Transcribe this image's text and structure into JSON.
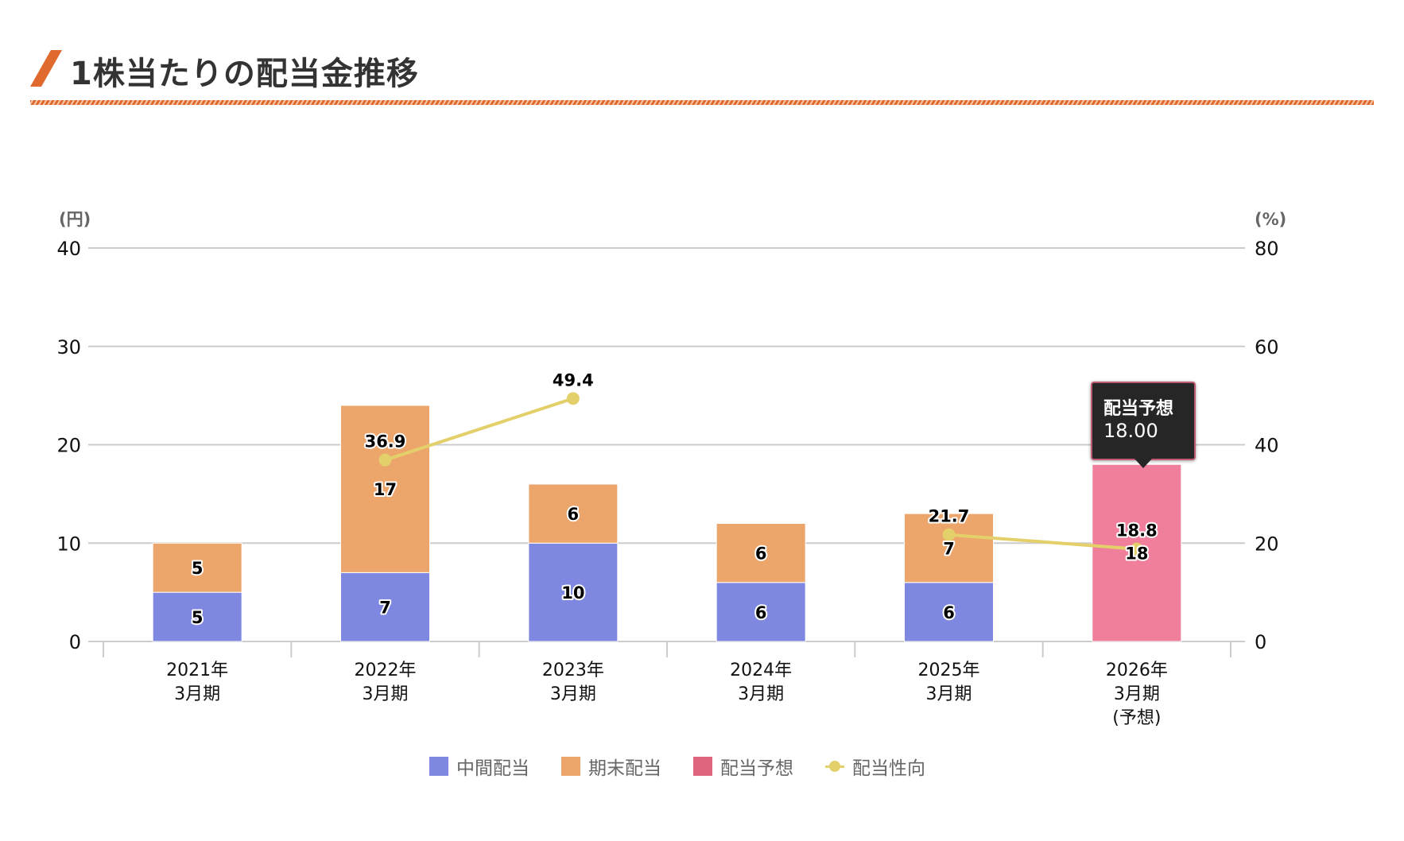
{
  "header": {
    "title": "1株当たりの配当金推移",
    "accent_color": "#e06a2e"
  },
  "chart_data": {
    "type": "bar",
    "stacked": true,
    "title": "1株当たりの配当金推移",
    "categories": [
      [
        "2021年",
        "3月期"
      ],
      [
        "2022年",
        "3月期"
      ],
      [
        "2023年",
        "3月期"
      ],
      [
        "2024年",
        "3月期"
      ],
      [
        "2025年",
        "3月期"
      ],
      [
        "2026年",
        "3月期",
        "(予想)"
      ]
    ],
    "y_left": {
      "label": "(円)",
      "ylim": [
        0,
        40
      ],
      "ticks": [
        0,
        10,
        20,
        30,
        40
      ]
    },
    "y_right": {
      "label": "(%)",
      "ylim": [
        0,
        80
      ],
      "ticks": [
        0,
        20,
        40,
        60,
        80
      ]
    },
    "grid": true,
    "legend_position": "bottom",
    "series": [
      {
        "name": "中間配当",
        "type": "bar",
        "axis": "left",
        "color": "#7f88e1",
        "values": [
          5,
          7,
          10,
          6,
          6,
          null
        ]
      },
      {
        "name": "期末配当",
        "type": "bar",
        "axis": "left",
        "color": "#eca56b",
        "values": [
          5,
          17,
          6,
          6,
          7,
          null
        ]
      },
      {
        "name": "配当予想",
        "type": "bar",
        "axis": "left",
        "color": "#e0657e",
        "bar_color_highlight": "#ef7f9b",
        "values": [
          null,
          null,
          null,
          null,
          null,
          18
        ]
      },
      {
        "name": "配当性向",
        "type": "line",
        "axis": "right",
        "color": "#e3d06b",
        "values": [
          null,
          36.9,
          49.4,
          null,
          21.7,
          18.8
        ]
      }
    ],
    "tooltip": {
      "series": "配当予想",
      "category_index": 5,
      "title": "配当予想",
      "value": "18.00"
    }
  }
}
